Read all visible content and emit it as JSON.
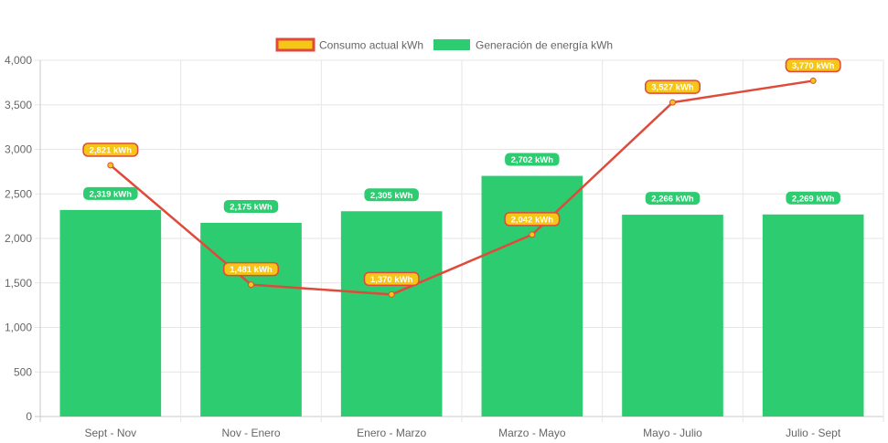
{
  "colors": {
    "consumo_fill": "#f5c518",
    "consumo_border": "#e04a3a",
    "generacion_fill": "#2ecc71",
    "grid": "#e6e6e6",
    "axis": "#c8c8c8",
    "tick_text": "#666666"
  },
  "legend": {
    "consumo_label": "Consumo actual kWh",
    "generacion_label": "Generación de energía kWh"
  },
  "chart_data": {
    "type": "bar",
    "title": "",
    "xlabel": "",
    "ylabel": "",
    "categories": [
      "Sept - Nov",
      "Nov - Enero",
      "Enero - Marzo",
      "Marzo - Mayo",
      "Mayo - Julio",
      "Julio - Sept"
    ],
    "ylim": [
      0,
      4000
    ],
    "yticks": [
      0,
      500,
      1000,
      1500,
      2000,
      2500,
      3000,
      3500,
      4000
    ],
    "ytick_labels": [
      "0",
      "500",
      "1,000",
      "1,500",
      "2,000",
      "2,500",
      "3,000",
      "3,500",
      "4,000"
    ],
    "grid": true,
    "legend_position": "top",
    "series": [
      {
        "name": "Consumo actual kWh",
        "type": "line",
        "values": [
          2821,
          1481,
          1370,
          2042,
          3527,
          3770
        ],
        "labels": [
          "2,821 kWh",
          "1,481 kWh",
          "1,370 kWh",
          "2,042 kWh",
          "3,527 kWh",
          "3,770 kWh"
        ]
      },
      {
        "name": "Generación de energía kWh",
        "type": "bar",
        "values": [
          2319,
          2175,
          2305,
          2702,
          2266,
          2269
        ],
        "labels": [
          "2,319 kWh",
          "2,175 kWh",
          "2,305 kWh",
          "2,702 kWh",
          "2,266 kWh",
          "2,269 kWh"
        ]
      }
    ]
  }
}
